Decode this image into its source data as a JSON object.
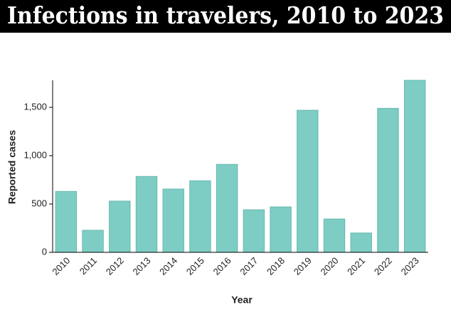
{
  "chart_data": {
    "type": "bar",
    "title": "Infections in travelers, 2010 to 2023",
    "x_label": "Year",
    "y_label": "Reported cases",
    "categories": [
      "2010",
      "2011",
      "2012",
      "2013",
      "2014",
      "2015",
      "2016",
      "2017",
      "2018",
      "2019",
      "2020",
      "2021",
      "2022",
      "2023"
    ],
    "values": [
      630,
      228,
      530,
      785,
      655,
      740,
      910,
      440,
      470,
      1470,
      345,
      200,
      1490,
      1780
    ],
    "color": "#7ecdc4",
    "ylim": [
      0,
      1780
    ],
    "yticks": [
      0,
      500,
      {
        "value": 1000,
        "label": "1,000"
      },
      {
        "value": 1500,
        "label": "1,500"
      }
    ],
    "grid": false
  }
}
